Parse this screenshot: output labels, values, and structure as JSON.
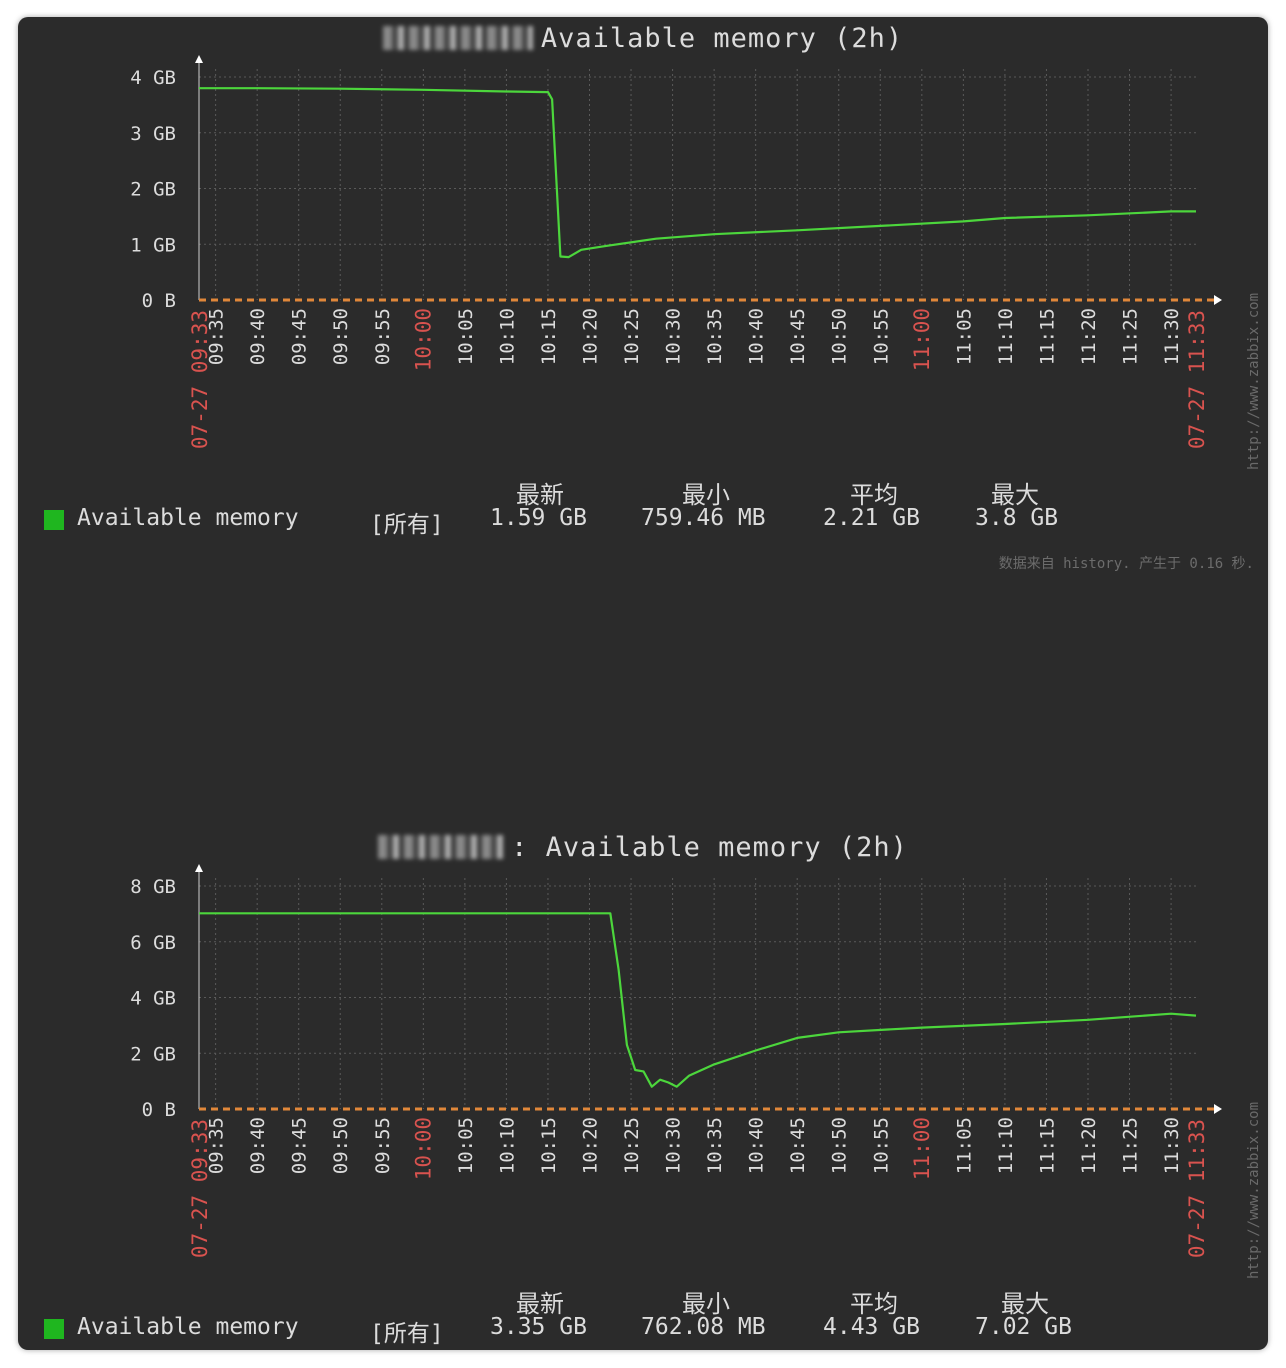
{
  "colors": {
    "background": "#2b2b2b",
    "grid": "#5a5a5a",
    "series": "#4cd63c",
    "baseline": "#e0873a",
    "red_label": "#d9534f",
    "swatch": "#1fb61f"
  },
  "graphs": [
    {
      "title_suffix": "Available memory (2h)",
      "credit": "http://www.zabbix.com",
      "legend": {
        "name": "Available memory",
        "scope": "[所有]",
        "last": "1.59 GB",
        "min": "759.46 MB",
        "avg": "2.21 GB",
        "max": "3.8 GB"
      },
      "stat_headers": {
        "last": "最新",
        "min": "最小",
        "avg": "平均",
        "max": "最大"
      },
      "footnote": "数据来自 history. 产生于 0.16 秒.",
      "chart_data": {
        "type": "line",
        "title": "Available memory (2h)",
        "y_unit": "GB",
        "ylim": [
          0,
          4
        ],
        "y_ticks": [
          {
            "v": 0,
            "label": "0 B"
          },
          {
            "v": 1,
            "label": "1 GB"
          },
          {
            "v": 2,
            "label": "2 GB"
          },
          {
            "v": 3,
            "label": "3 GB"
          },
          {
            "v": 4,
            "label": "4 GB"
          }
        ],
        "x_range_minutes": [
          573,
          693
        ],
        "x_start_label": "07-27 09:33",
        "x_end_label": "07-27 11:33",
        "x_ticks": [
          "09:35",
          "09:40",
          "09:45",
          "09:50",
          "09:55",
          "10:00",
          "10:05",
          "10:10",
          "10:15",
          "10:20",
          "10:25",
          "10:30",
          "10:35",
          "10:40",
          "10:45",
          "10:50",
          "10:55",
          "11:00",
          "11:05",
          "11:10",
          "11:15",
          "11:20",
          "11:25",
          "11:30"
        ],
        "x_red_ticks": [
          "10:00",
          "11:00"
        ],
        "grid": true,
        "series": [
          {
            "name": "Available memory",
            "points": [
              [
                573,
                3.8
              ],
              [
                580,
                3.8
              ],
              [
                590,
                3.79
              ],
              [
                600,
                3.77
              ],
              [
                610,
                3.74
              ],
              [
                615,
                3.73
              ],
              [
                615.5,
                3.6
              ],
              [
                616.5,
                0.78
              ],
              [
                617.5,
                0.77
              ],
              [
                619,
                0.9
              ],
              [
                622,
                0.97
              ],
              [
                628,
                1.1
              ],
              [
                635,
                1.18
              ],
              [
                645,
                1.25
              ],
              [
                655,
                1.33
              ],
              [
                665,
                1.41
              ],
              [
                670,
                1.47
              ],
              [
                680,
                1.52
              ],
              [
                690,
                1.59
              ],
              [
                693,
                1.59
              ]
            ]
          }
        ]
      }
    },
    {
      "title_suffix": ": Available memory (2h)",
      "credit": "http://www.zabbix.com",
      "legend": {
        "name": "Available memory",
        "scope": "[所有]",
        "last": "3.35 GB",
        "min": "762.08 MB",
        "avg": "4.43 GB",
        "max": "7.02 GB"
      },
      "stat_headers": {
        "last": "最新",
        "min": "最小",
        "avg": "平均",
        "max": "最大"
      },
      "footnote": "",
      "chart_data": {
        "type": "line",
        "title": "Available memory (2h)",
        "y_unit": "GB",
        "ylim": [
          0,
          8
        ],
        "y_ticks": [
          {
            "v": 0,
            "label": "0 B"
          },
          {
            "v": 2,
            "label": "2 GB"
          },
          {
            "v": 4,
            "label": "4 GB"
          },
          {
            "v": 6,
            "label": "6 GB"
          },
          {
            "v": 8,
            "label": "8 GB"
          }
        ],
        "x_range_minutes": [
          573,
          693
        ],
        "x_start_label": "07-27 09:33",
        "x_end_label": "07-27 11:33",
        "x_ticks": [
          "09:35",
          "09:40",
          "09:45",
          "09:50",
          "09:55",
          "10:00",
          "10:05",
          "10:10",
          "10:15",
          "10:20",
          "10:25",
          "10:30",
          "10:35",
          "10:40",
          "10:45",
          "10:50",
          "10:55",
          "11:00",
          "11:05",
          "11:10",
          "11:15",
          "11:20",
          "11:25",
          "11:30"
        ],
        "x_red_ticks": [
          "10:00",
          "11:00"
        ],
        "grid": true,
        "series": [
          {
            "name": "Available memory",
            "points": [
              [
                573,
                7.02
              ],
              [
                600,
                7.02
              ],
              [
                622.5,
                7.02
              ],
              [
                623.5,
                5.0
              ],
              [
                624.5,
                2.3
              ],
              [
                625.5,
                1.4
              ],
              [
                626.5,
                1.35
              ],
              [
                627.5,
                0.8
              ],
              [
                628.5,
                1.05
              ],
              [
                629.5,
                0.95
              ],
              [
                630.5,
                0.8
              ],
              [
                632,
                1.2
              ],
              [
                635,
                1.6
              ],
              [
                640,
                2.1
              ],
              [
                645,
                2.55
              ],
              [
                650,
                2.75
              ],
              [
                660,
                2.92
              ],
              [
                670,
                3.05
              ],
              [
                680,
                3.2
              ],
              [
                690,
                3.42
              ],
              [
                693,
                3.35
              ]
            ]
          }
        ]
      }
    }
  ]
}
